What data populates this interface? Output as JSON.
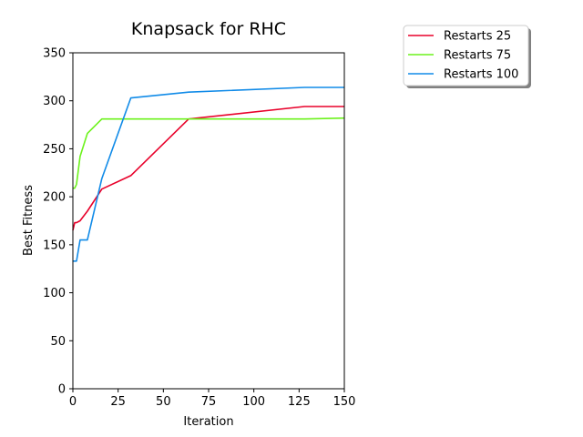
{
  "chart_data": {
    "type": "line",
    "title": "Knapsack for RHC",
    "xlabel": "Iteration",
    "ylabel": "Best Fitness",
    "xlim": [
      0,
      150
    ],
    "ylim": [
      0,
      350
    ],
    "xticks": [
      0,
      25,
      50,
      75,
      100,
      125,
      150
    ],
    "yticks": [
      0,
      50,
      100,
      150,
      200,
      250,
      300,
      350
    ],
    "grid": false,
    "legend_position": "outside-top-right",
    "series": [
      {
        "name": "Restarts 25",
        "color": "#e8002a",
        "x": [
          0,
          1,
          2,
          4,
          8,
          16,
          32,
          64,
          128,
          150
        ],
        "y": [
          165,
          173,
          173,
          175,
          185,
          208,
          222,
          281,
          294,
          294
        ]
      },
      {
        "name": "Restarts 75",
        "color": "#6cf21c",
        "x": [
          0,
          1,
          2,
          4,
          8,
          16,
          32,
          64,
          128,
          150
        ],
        "y": [
          209,
          209,
          213,
          242,
          266,
          281,
          281,
          281,
          281,
          282
        ]
      },
      {
        "name": "Restarts 100",
        "color": "#118be8",
        "x": [
          0,
          1,
          2,
          4,
          8,
          16,
          32,
          64,
          128,
          150
        ],
        "y": [
          133,
          133,
          133,
          155,
          155,
          219,
          303,
          309,
          314,
          314
        ]
      }
    ]
  }
}
